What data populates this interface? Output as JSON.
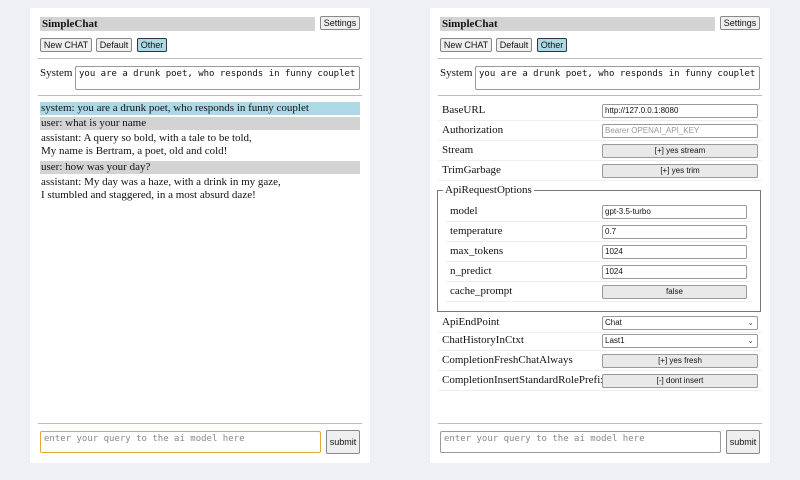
{
  "app_title": "SimpleChat",
  "settings_label": "Settings",
  "chat_buttons": [
    "New CHAT",
    "Default",
    "Other"
  ],
  "selected_chat": "Other",
  "system_label": "System",
  "system_prompt": "you are a drunk poet, who responds in funny couplet",
  "messages": [
    {
      "role": "system",
      "lines": [
        "system: you are a drunk poet, who responds in funny couplet"
      ]
    },
    {
      "role": "user",
      "lines": [
        "user: what is your name"
      ]
    },
    {
      "role": "assistant",
      "lines": [
        "assistant: A query so bold, with a tale to be told,",
        "My name is Bertram, a poet, old and cold!"
      ]
    },
    {
      "role": "user",
      "lines": [
        "user: how was your day?"
      ]
    },
    {
      "role": "assistant",
      "lines": [
        "assistant: My day was a haze, with a drink in my gaze,",
        "I stumbled and staggered, in a most absurd daze!"
      ]
    }
  ],
  "query_placeholder": "enter your query to the ai model here",
  "submit_label": "submit",
  "settings": {
    "base_url": {
      "label": "BaseURL",
      "value": "http://127.0.0.1:8080"
    },
    "authorization": {
      "label": "Authorization",
      "placeholder": "Bearer OPENAI_API_KEY"
    },
    "stream": {
      "label": "Stream",
      "value": "[+] yes stream"
    },
    "trim_garbage": {
      "label": "TrimGarbage",
      "value": "[+] yes trim"
    },
    "api_request_options": {
      "legend": "ApiRequestOptions",
      "model": {
        "label": "model",
        "value": "gpt-3.5-turbo"
      },
      "temperature": {
        "label": "temperature",
        "value": "0.7"
      },
      "max_tokens": {
        "label": "max_tokens",
        "value": "1024"
      },
      "n_predict": {
        "label": "n_predict",
        "value": "1024"
      },
      "cache_prompt": {
        "label": "cache_prompt",
        "value": "false"
      }
    },
    "api_endpoint": {
      "label": "ApiEndPoint",
      "value": "Chat"
    },
    "chat_history": {
      "label": "ChatHistoryInCtxt",
      "value": "Last1"
    },
    "fresh_chat": {
      "label": "CompletionFreshChatAlways",
      "value": "[+] yes fresh"
    },
    "insert_prefix": {
      "label": "CompletionInsertStandardRolePrefix",
      "value": "[-] dont insert"
    }
  },
  "colors": {
    "selected": "#add8e6",
    "user_bg": "#d3d3d3",
    "focus": "#e0a93a"
  }
}
